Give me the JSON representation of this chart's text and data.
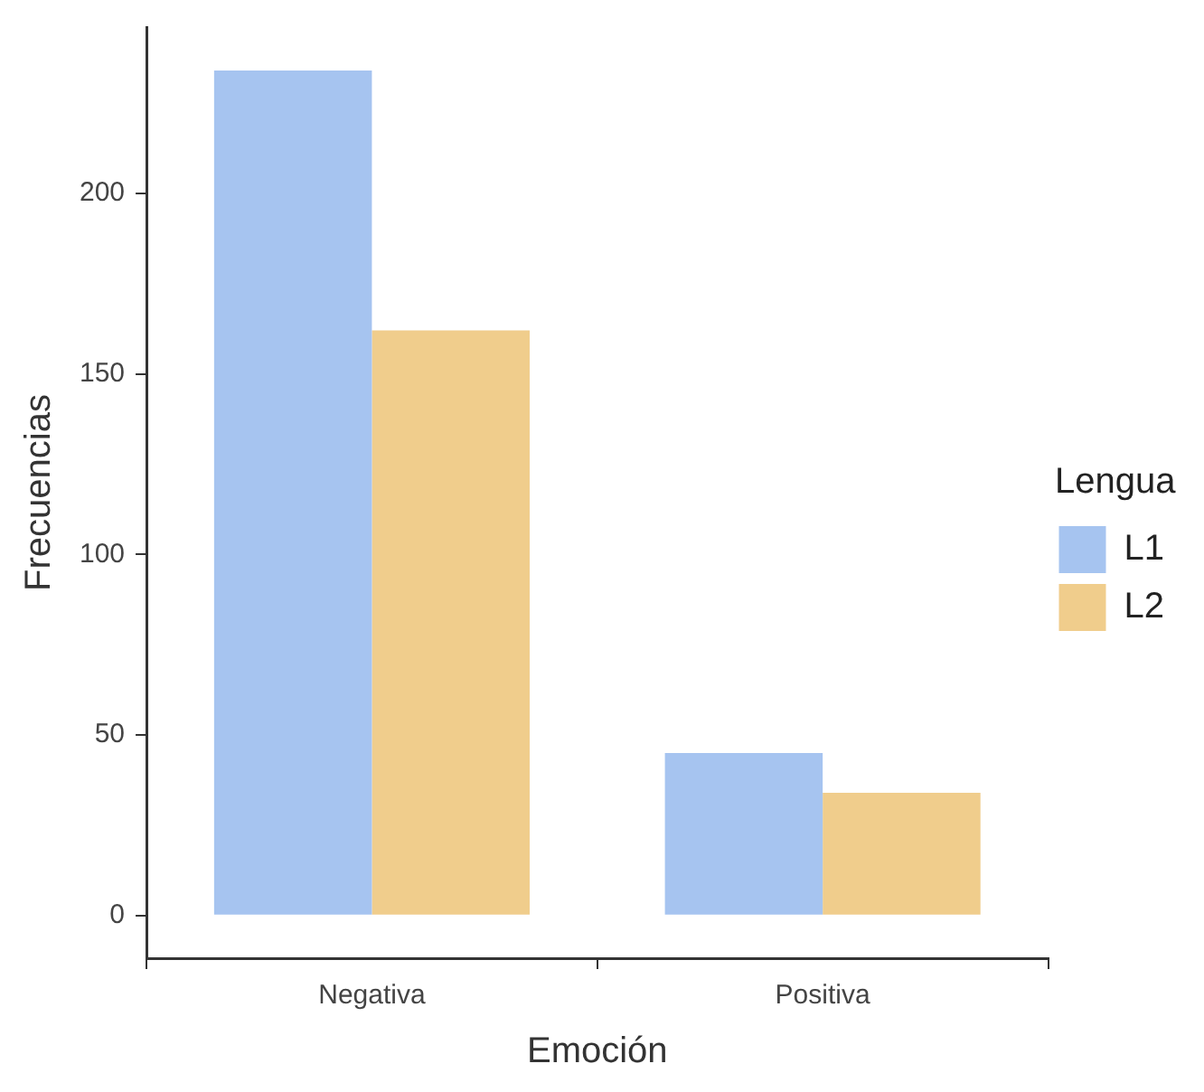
{
  "chart_data": {
    "type": "bar",
    "xlabel": "Emoción",
    "ylabel": "Frecuencias",
    "legend_title": "Lengua",
    "categories": [
      "Negativa",
      "Positiva"
    ],
    "series": [
      {
        "name": "L1",
        "color": "#a6c4f0",
        "values": [
          234,
          45
        ]
      },
      {
        "name": "L2",
        "color": "#f0cd8c",
        "values": [
          162,
          34
        ]
      }
    ],
    "ylim": [
      -11.8,
      246
    ],
    "yticks": [
      0,
      50,
      100,
      150,
      200
    ],
    "grid": false,
    "legend": "right"
  }
}
